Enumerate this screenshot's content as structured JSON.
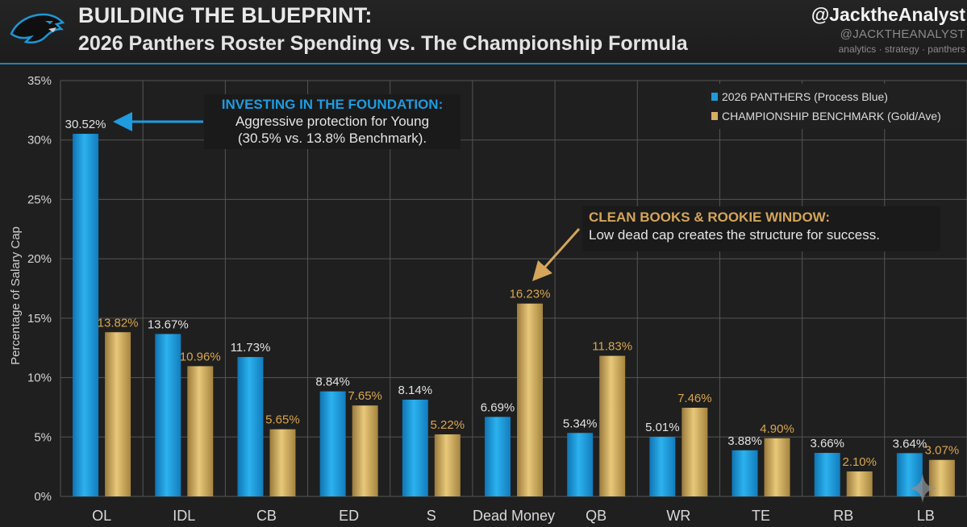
{
  "header": {
    "title": "BUILDING THE BLUEPRINT:",
    "subtitle": "2026 Panthers Roster Spending vs. The Championship Formula",
    "handle": "@JacktheAnalyst",
    "handle_caps": "@JACKTHEANALYST",
    "tagline": "analytics · strategy · panthers"
  },
  "colors": {
    "panthers": "#1e9ad8",
    "benchmark": "#d6b062",
    "benchmark_label": "#d9a64e",
    "panthers_label": "#e2e2e2"
  },
  "legend": {
    "panthers": "2026 PANTHERS (Process Blue)",
    "benchmark": "CHAMPIONSHIP BENCHMARK (Gold/Ave)"
  },
  "annotations": {
    "foundation": {
      "heading": "INVESTING IN THE FOUNDATION:",
      "line1": "Aggressive protection for Young",
      "line2": "(30.5% vs. 13.8% Benchmark)."
    },
    "clean_books": {
      "heading": "CLEAN BOOKS & ROOKIE WINDOW:",
      "line1": "Low dead cap creates the structure for success."
    }
  },
  "chart_data": {
    "type": "bar",
    "ylabel": "Percentage of Salary Cap",
    "xlabel": "",
    "ylim": [
      0,
      35
    ],
    "yticks": [
      "0%",
      "5%",
      "10%",
      "15%",
      "20%",
      "25%",
      "30%",
      "35%"
    ],
    "grid": true,
    "legend_position": "top-right",
    "categories": [
      "OL",
      "IDL",
      "CB",
      "ED",
      "S",
      "Dead Money",
      "QB",
      "WR",
      "TE",
      "RB",
      "LB"
    ],
    "series": [
      {
        "name": "2026 PANTHERS (Process Blue)",
        "values": [
          30.52,
          13.67,
          11.73,
          8.84,
          8.14,
          6.69,
          5.34,
          5.01,
          3.88,
          3.66,
          3.64
        ],
        "labels": [
          "30.52%",
          "13.67%",
          "11.73%",
          "8.84%",
          "8.14%",
          "6.69%",
          "5.34%",
          "5.01%",
          "3.88%",
          "3.66%",
          "3.64%"
        ]
      },
      {
        "name": "CHAMPIONSHIP BENCHMARK (Gold/Ave)",
        "values": [
          13.82,
          10.96,
          5.65,
          7.65,
          5.22,
          16.23,
          11.83,
          7.46,
          4.9,
          2.1,
          3.07
        ],
        "labels": [
          "13.82%",
          "10.96%",
          "5.65%",
          "7.65%",
          "5.22%",
          "16.23%",
          "11.83%",
          "7.46%",
          "4.90%",
          "2.10%",
          "3.07%"
        ]
      }
    ]
  }
}
